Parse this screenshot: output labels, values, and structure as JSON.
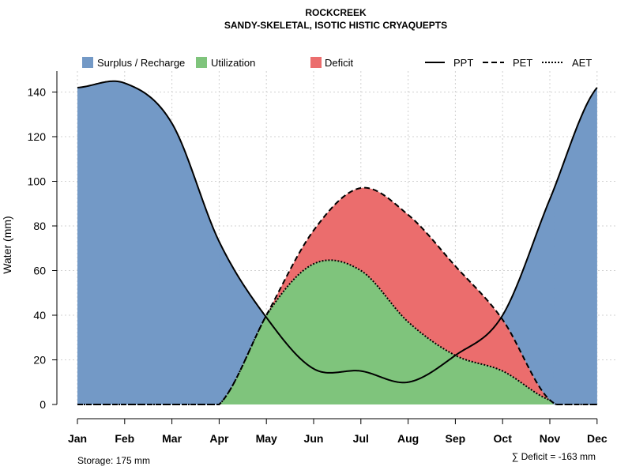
{
  "chart_data": {
    "type": "area",
    "title": "ROCKCREEK",
    "subtitle": "SANDY-SKELETAL, ISOTIC HISTIC CRYAQUEPTS",
    "ylabel": "Water (mm)",
    "xlabel": "",
    "ylim": [
      0,
      150
    ],
    "yticks": [
      0,
      20,
      40,
      60,
      80,
      100,
      120,
      140
    ],
    "categories": [
      "Jan",
      "Feb",
      "Mar",
      "Apr",
      "May",
      "Jun",
      "Jul",
      "Aug",
      "Sep",
      "Oct",
      "Nov",
      "Dec"
    ],
    "series": [
      {
        "name": "PPT",
        "style": "solid",
        "values": [
          142,
          144,
          126,
          73,
          39,
          16,
          15,
          10,
          22,
          40,
          92,
          142
        ]
      },
      {
        "name": "PET",
        "style": "dashed",
        "values": [
          0,
          0,
          0,
          0,
          40,
          78,
          97,
          85,
          62,
          38,
          2,
          0
        ]
      },
      {
        "name": "AET",
        "style": "dotted",
        "values": [
          0,
          0,
          0,
          0,
          40,
          63,
          60,
          37,
          22,
          15,
          2,
          0
        ]
      }
    ],
    "fills": [
      {
        "name": "Surplus / Recharge",
        "color": "#7399C6"
      },
      {
        "name": "Utilization",
        "color": "#7FC47C"
      },
      {
        "name": "Deficit",
        "color": "#EB6D6D"
      }
    ],
    "grid": true,
    "legend": {
      "position": "top",
      "line_items": [
        "PPT",
        "PET",
        "AET"
      ]
    },
    "footer": {
      "storage": "Storage: 175 mm",
      "deficit": "∑ Deficit = -163 mm"
    }
  }
}
